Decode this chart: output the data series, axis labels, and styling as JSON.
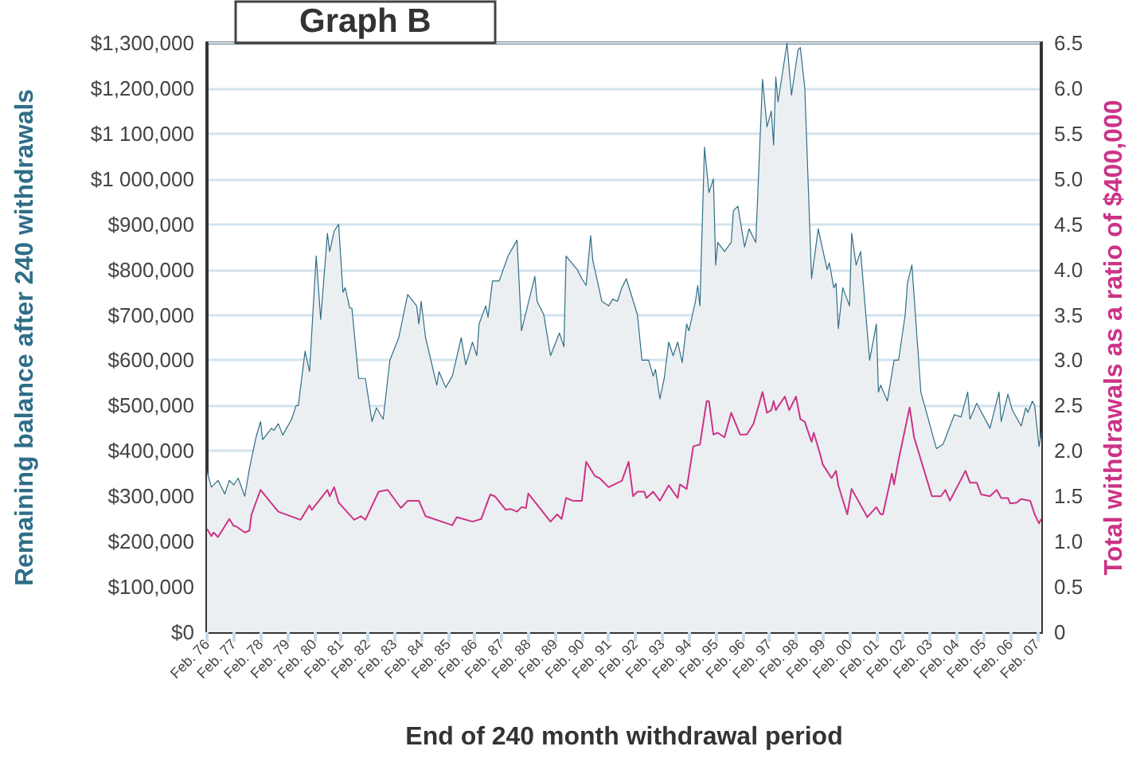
{
  "chart_data": {
    "type": "line",
    "title": "Graph B",
    "xlabel": "End of 240 month withdrawal period",
    "ylabel": "Remaining balance after 240 withdrawals",
    "y2label": "Total withdrawals as a ratio of $400,000",
    "xlim": [
      "1976-02",
      "2007-04"
    ],
    "xticks": [
      {
        "value": "1976-02",
        "label": "Feb. 76"
      },
      {
        "value": "1977-02",
        "label": "Feb. 77"
      },
      {
        "value": "1978-02",
        "label": "Feb. 78"
      },
      {
        "value": "1979-02",
        "label": "Feb. 79"
      },
      {
        "value": "1980-02",
        "label": "Feb. 80"
      },
      {
        "value": "1981-02",
        "label": "Feb. 81"
      },
      {
        "value": "1982-02",
        "label": "Feb. 82"
      },
      {
        "value": "1983-02",
        "label": "Feb. 83"
      },
      {
        "value": "1984-02",
        "label": "Feb. 84"
      },
      {
        "value": "1985-02",
        "label": "Feb. 85"
      },
      {
        "value": "1986-02",
        "label": "Feb. 86"
      },
      {
        "value": "1987-02",
        "label": "Feb. 87"
      },
      {
        "value": "1988-02",
        "label": "Feb. 88"
      },
      {
        "value": "1989-02",
        "label": "Feb. 89"
      },
      {
        "value": "1990-02",
        "label": "Feb. 90"
      },
      {
        "value": "1991-02",
        "label": "Feb. 91"
      },
      {
        "value": "1992-02",
        "label": "Feb. 92"
      },
      {
        "value": "1993-02",
        "label": "Feb. 93"
      },
      {
        "value": "1994-02",
        "label": "Feb. 94"
      },
      {
        "value": "1995-02",
        "label": "Feb. 95"
      },
      {
        "value": "1996-02",
        "label": "Feb. 96"
      },
      {
        "value": "1997-02",
        "label": "Feb. 97"
      },
      {
        "value": "1998-02",
        "label": "Feb. 98"
      },
      {
        "value": "1999-02",
        "label": "Feb. 99"
      },
      {
        "value": "2000-02",
        "label": "Feb. 00"
      },
      {
        "value": "2001-02",
        "label": "Feb. 01"
      },
      {
        "value": "2002-02",
        "label": "Feb. 02"
      },
      {
        "value": "2003-02",
        "label": "Feb. 03"
      },
      {
        "value": "2004-02",
        "label": "Feb. 04"
      },
      {
        "value": "2005-02",
        "label": "Feb. 05"
      },
      {
        "value": "2006-02",
        "label": "Feb. 06"
      },
      {
        "value": "2007-02",
        "label": "Feb. 07"
      }
    ],
    "ylim": [
      0,
      1300000
    ],
    "yticks": [
      {
        "value": 0,
        "label": "$0"
      },
      {
        "value": 100000,
        "label": "$100,000"
      },
      {
        "value": 200000,
        "label": "$200,000"
      },
      {
        "value": 300000,
        "label": "$300,000"
      },
      {
        "value": 400000,
        "label": "$400,000"
      },
      {
        "value": 500000,
        "label": "$500,000"
      },
      {
        "value": 600000,
        "label": "$600,000"
      },
      {
        "value": 700000,
        "label": "$700,000"
      },
      {
        "value": 800000,
        "label": "$800,000"
      },
      {
        "value": 900000,
        "label": "$900,000"
      },
      {
        "value": 1000000,
        "label": "$1 000,000"
      },
      {
        "value": 1100000,
        "label": "$1 100,000"
      },
      {
        "value": 1200000,
        "label": "$1,200,000"
      },
      {
        "value": 1300000,
        "label": "$1,300,000"
      }
    ],
    "y2lim": [
      0,
      6.5
    ],
    "y2ticks": [
      0,
      {
        "value": 0.5,
        "label": "0.5"
      },
      {
        "value": 1,
        "label": "1.0"
      },
      {
        "value": 1.5,
        "label": "1.5"
      },
      {
        "value": 2,
        "label": "2.0"
      },
      {
        "value": 2.5,
        "label": "2.5"
      },
      {
        "value": 3,
        "label": "3.0"
      },
      {
        "value": 3.5,
        "label": "3.5"
      },
      {
        "value": 4,
        "label": "4.0"
      },
      {
        "value": 4.5,
        "label": "4.5"
      },
      {
        "value": 5,
        "label": "5.0"
      },
      {
        "value": 5.5,
        "label": "5.5"
      },
      {
        "value": 6,
        "label": "6.0"
      },
      {
        "value": 6.5,
        "label": "6.5"
      }
    ],
    "grid": "y",
    "marker": "none",
    "line_style": "solid",
    "series": [
      {
        "type": "area",
        "color": "#2f6e88",
        "x": [
          "1976-02",
          "1976-04",
          "1976-07",
          "1976-10",
          "1976-12",
          "1977-02",
          "1977-04",
          "1977-07",
          "1977-09",
          "1977-12",
          "1978-02",
          "1978-03",
          "1978-07",
          "1978-08",
          "1978-10",
          "1978-12",
          "1979-04",
          "1979-06",
          "1979-07",
          "1979-10",
          "1979-12",
          "1980-03",
          "1980-05",
          "1980-08",
          "1980-09",
          "1980-11",
          "1981-01",
          "1981-03",
          "1981-04",
          "1981-06",
          "1981-07",
          "1981-10",
          "1982-01",
          "1982-04",
          "1982-06",
          "1982-09",
          "1982-12",
          "1983-04",
          "1983-08",
          "1983-12",
          "1984-01",
          "1984-02",
          "1984-04",
          "1984-09",
          "1984-10",
          "1985-01",
          "1985-04",
          "1985-08",
          "1985-10",
          "1986-01",
          "1986-03",
          "1986-04",
          "1986-07",
          "1986-08",
          "1986-10",
          "1987-01",
          "1987-05",
          "1987-09",
          "1987-11",
          "1988-05",
          "1988-06",
          "1988-09",
          "1988-12",
          "1989-04",
          "1989-06",
          "1989-07",
          "1989-12",
          "1990-02",
          "1990-04",
          "1990-06",
          "1990-07",
          "1990-11",
          "1991-02",
          "1991-04",
          "1991-06",
          "1991-08",
          "1991-10",
          "1992-03",
          "1992-05",
          "1992-08",
          "1992-10",
          "1992-11",
          "1993-01",
          "1993-03",
          "1993-05",
          "1993-07",
          "1993-09",
          "1993-11",
          "1994-01",
          "1994-02",
          "1994-05",
          "1994-06",
          "1994-07",
          "1994-09",
          "1994-11",
          "1995-01",
          "1995-02",
          "1995-03",
          "1995-06",
          "1995-09",
          "1995-10",
          "1995-12",
          "1996-03",
          "1996-05",
          "1996-08",
          "1996-11",
          "1997-01",
          "1997-03",
          "1997-04",
          "1997-05",
          "1997-06",
          "1997-10",
          "1997-12",
          "1998-03",
          "1998-04",
          "1998-06",
          "1998-09",
          "1998-12",
          "1999-04",
          "1999-05",
          "1999-07",
          "1999-08",
          "1999-09",
          "1999-11",
          "2000-02",
          "2000-03",
          "2000-05",
          "2000-07",
          "2000-11",
          "2001-02",
          "2001-03",
          "2001-04",
          "2001-07",
          "2001-10",
          "2001-12",
          "2002-03",
          "2002-04",
          "2002-06",
          "2002-10",
          "2003-05",
          "2003-08",
          "2004-01",
          "2004-04",
          "2004-07",
          "2004-08",
          "2004-11",
          "2005-05",
          "2005-09",
          "2005-10",
          "2006-01",
          "2006-03",
          "2006-07",
          "2006-09",
          "2006-10",
          "2006-12",
          "2007-01",
          "2007-03",
          "2007-04"
        ],
        "values": [
          355000,
          320000,
          335000,
          305000,
          335000,
          325000,
          340000,
          300000,
          360000,
          430000,
          465000,
          425000,
          450000,
          445000,
          460000,
          435000,
          470000,
          500000,
          500000,
          620000,
          575000,
          830000,
          690000,
          880000,
          840000,
          885000,
          900000,
          750000,
          760000,
          715000,
          715000,
          560000,
          560000,
          465000,
          495000,
          470000,
          600000,
          650000,
          745000,
          720000,
          680000,
          730000,
          650000,
          545000,
          575000,
          540000,
          565000,
          650000,
          590000,
          640000,
          610000,
          680000,
          720000,
          695000,
          775000,
          775000,
          830000,
          865000,
          665000,
          785000,
          730000,
          700000,
          610000,
          660000,
          630000,
          830000,
          800000,
          780000,
          765000,
          875000,
          820000,
          730000,
          720000,
          735000,
          730000,
          760000,
          780000,
          700000,
          600000,
          600000,
          565000,
          580000,
          515000,
          560000,
          640000,
          610000,
          640000,
          595000,
          680000,
          665000,
          730000,
          765000,
          720000,
          1070000,
          970000,
          1000000,
          810000,
          860000,
          840000,
          860000,
          930000,
          940000,
          850000,
          890000,
          860000,
          1220000,
          1115000,
          1150000,
          1075000,
          1225000,
          1170000,
          1300000,
          1185000,
          1285000,
          1290000,
          1200000,
          780000,
          890000,
          800000,
          815000,
          760000,
          770000,
          670000,
          760000,
          720000,
          880000,
          810000,
          840000,
          600000,
          680000,
          530000,
          545000,
          510000,
          600000,
          600000,
          700000,
          770000,
          810000,
          530000,
          405000,
          415000,
          480000,
          475000,
          530000,
          470000,
          505000,
          450000,
          530000,
          465000,
          525000,
          490000,
          455000,
          495000,
          485000,
          510000,
          500000,
          410000,
          440000
        ]
      },
      {
        "type": "line",
        "axis": "y2",
        "color": "#cc3388",
        "x": [
          "1976-02",
          "1976-04",
          "1976-05",
          "1976-07",
          "1976-12",
          "1977-02",
          "1977-03",
          "1977-07",
          "1977-09",
          "1977-10",
          "1978-02",
          "1978-10",
          "1979-08",
          "1979-12",
          "1980-01",
          "1980-08",
          "1980-09",
          "1980-11",
          "1981-01",
          "1981-08",
          "1981-11",
          "1982-01",
          "1982-07",
          "1982-11",
          "1983-05",
          "1983-08",
          "1984-01",
          "1984-04",
          "1985-04",
          "1985-06",
          "1986-01",
          "1986-05",
          "1986-09",
          "1986-11",
          "1987-04",
          "1987-06",
          "1987-09",
          "1987-11",
          "1988-01",
          "1988-02",
          "1988-12",
          "1989-03",
          "1989-05",
          "1989-07",
          "1989-10",
          "1990-02",
          "1990-04",
          "1990-08",
          "1990-10",
          "1991-02",
          "1991-08",
          "1991-11",
          "1992-01",
          "1992-03",
          "1992-06",
          "1992-07",
          "1992-10",
          "1993-01",
          "1993-05",
          "1993-09",
          "1993-10",
          "1994-01",
          "1994-04",
          "1994-07",
          "1994-10",
          "1994-11",
          "1995-01",
          "1995-03",
          "1995-06",
          "1995-09",
          "1996-01",
          "1996-04",
          "1996-07",
          "1996-11",
          "1997-01",
          "1997-03",
          "1997-04",
          "1997-05",
          "1997-09",
          "1997-11",
          "1998-02",
          "1998-04",
          "1998-06",
          "1998-09",
          "1998-10",
          "1999-01",
          "1999-02",
          "1999-06",
          "1999-08",
          "1999-09",
          "2000-01",
          "2000-03",
          "2000-10",
          "2001-02",
          "2001-04",
          "2001-05",
          "2001-09",
          "2001-10",
          "2001-12",
          "2002-05",
          "2002-07",
          "2003-03",
          "2003-07",
          "2003-09",
          "2003-11",
          "2004-06",
          "2004-08",
          "2004-11",
          "2005-01",
          "2005-05",
          "2005-08",
          "2005-10",
          "2006-01",
          "2006-02",
          "2006-05",
          "2006-07",
          "2006-11",
          "2007-01",
          "2007-03",
          "2007-04"
        ],
        "values": [
          1.14,
          1.06,
          1.1,
          1.05,
          1.25,
          1.17,
          1.17,
          1.1,
          1.12,
          1.3,
          1.57,
          1.33,
          1.24,
          1.4,
          1.35,
          1.57,
          1.5,
          1.6,
          1.43,
          1.24,
          1.28,
          1.24,
          1.55,
          1.57,
          1.37,
          1.45,
          1.45,
          1.28,
          1.18,
          1.27,
          1.22,
          1.25,
          1.52,
          1.5,
          1.35,
          1.36,
          1.33,
          1.38,
          1.37,
          1.53,
          1.22,
          1.3,
          1.25,
          1.48,
          1.45,
          1.45,
          1.88,
          1.72,
          1.7,
          1.6,
          1.67,
          1.88,
          1.5,
          1.55,
          1.55,
          1.48,
          1.55,
          1.45,
          1.62,
          1.48,
          1.63,
          1.58,
          2.05,
          2.07,
          2.55,
          2.55,
          2.18,
          2.2,
          2.15,
          2.42,
          2.18,
          2.18,
          2.3,
          2.65,
          2.42,
          2.45,
          2.55,
          2.45,
          2.6,
          2.45,
          2.6,
          2.35,
          2.32,
          2.1,
          2.2,
          1.95,
          1.85,
          1.7,
          1.78,
          1.62,
          1.3,
          1.58,
          1.27,
          1.38,
          1.3,
          1.3,
          1.75,
          1.63,
          1.9,
          2.48,
          2.15,
          1.5,
          1.5,
          1.57,
          1.45,
          1.78,
          1.65,
          1.65,
          1.52,
          1.5,
          1.57,
          1.48,
          1.48,
          1.42,
          1.43,
          1.47,
          1.45,
          1.3,
          1.2,
          1.25
        ]
      }
    ]
  }
}
